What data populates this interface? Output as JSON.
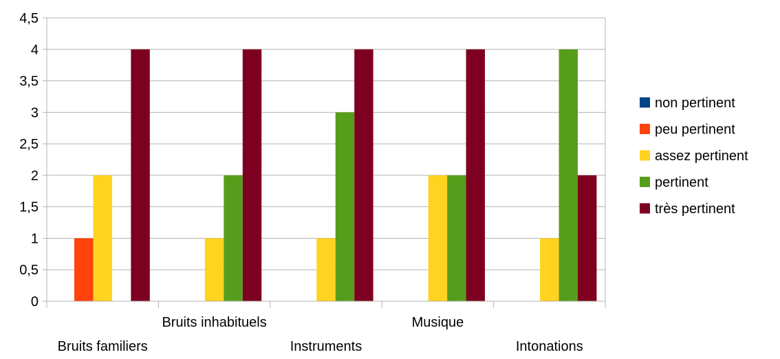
{
  "chart_data": {
    "type": "bar",
    "categories": [
      "Bruits familiers",
      "Bruits inhabituels",
      "Instruments",
      "Musique",
      "Intonations"
    ],
    "series": [
      {
        "name": "non pertinent",
        "color": "#004586",
        "values": [
          0,
          0,
          0,
          0,
          0
        ]
      },
      {
        "name": "peu pertinent",
        "color": "#ff420e",
        "values": [
          1,
          0,
          0,
          0,
          0
        ]
      },
      {
        "name": "assez pertinent",
        "color": "#ffd320",
        "values": [
          2,
          1,
          1,
          2,
          1
        ]
      },
      {
        "name": "pertinent",
        "color": "#579d1c",
        "values": [
          0,
          2,
          3,
          2,
          4
        ]
      },
      {
        "name": "très pertinent",
        "color": "#7e0021",
        "values": [
          4,
          4,
          4,
          4,
          2
        ]
      }
    ],
    "yticks": [
      "0",
      "0,5",
      "1",
      "1,5",
      "2",
      "2,5",
      "3",
      "3,5",
      "4",
      "4,5"
    ],
    "ylim": [
      0,
      4.5
    ],
    "grid": true,
    "legend_position": "right"
  }
}
